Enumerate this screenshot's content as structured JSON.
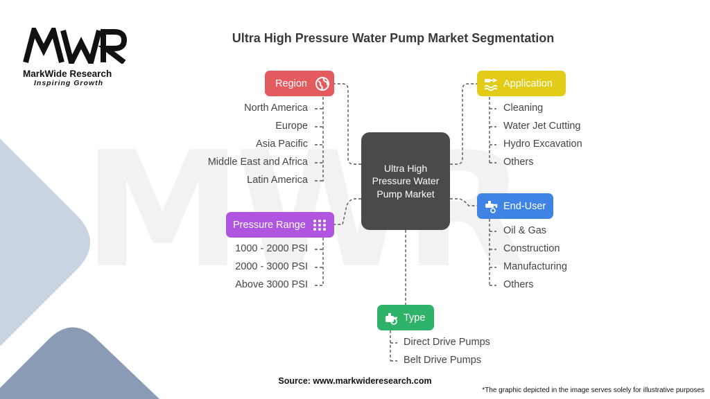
{
  "brand": {
    "name": "MarkWide Research",
    "tagline": "Inspiring Growth",
    "logo_text": "MWR"
  },
  "title": "Ultra High Pressure Water Pump Market Segmentation",
  "center_label": "Ultra High Pressure Water Pump Market",
  "colors": {
    "region": "#e35b5f",
    "application": "#e3cc18",
    "end_user": "#3f84e5",
    "pressure_range": "#b055df",
    "type": "#2fb36b",
    "center": "#4a4a4a"
  },
  "segments": {
    "region": {
      "label": "Region",
      "icon": "globe-icon",
      "items": [
        "North America",
        "Europe",
        "Asia Pacific",
        "Middle East and Africa",
        "Latin America"
      ]
    },
    "application": {
      "label": "Application",
      "icon": "water-jet-icon",
      "items": [
        "Cleaning",
        "Water Jet Cutting",
        "Hydro Excavation",
        "Others"
      ]
    },
    "end_user": {
      "label": "End-User",
      "icon": "faucet-icon",
      "items": [
        "Oil & Gas",
        "Construction",
        "Manufacturing",
        "Others"
      ]
    },
    "pressure_range": {
      "label": "Pressure Range",
      "icon": "dots-grid-icon",
      "items": [
        "1000 - 2000 PSI",
        "2000 - 3000 PSI",
        "Above 3000 PSI"
      ]
    },
    "type": {
      "label": "Type",
      "icon": "pump-icon",
      "items": [
        "Direct Drive Pumps",
        "Belt Drive Pumps"
      ]
    }
  },
  "source": "Source: www.markwideresearch.com",
  "disclaimer": "*The graphic depicted in the image serves solely for illustrative purposes"
}
